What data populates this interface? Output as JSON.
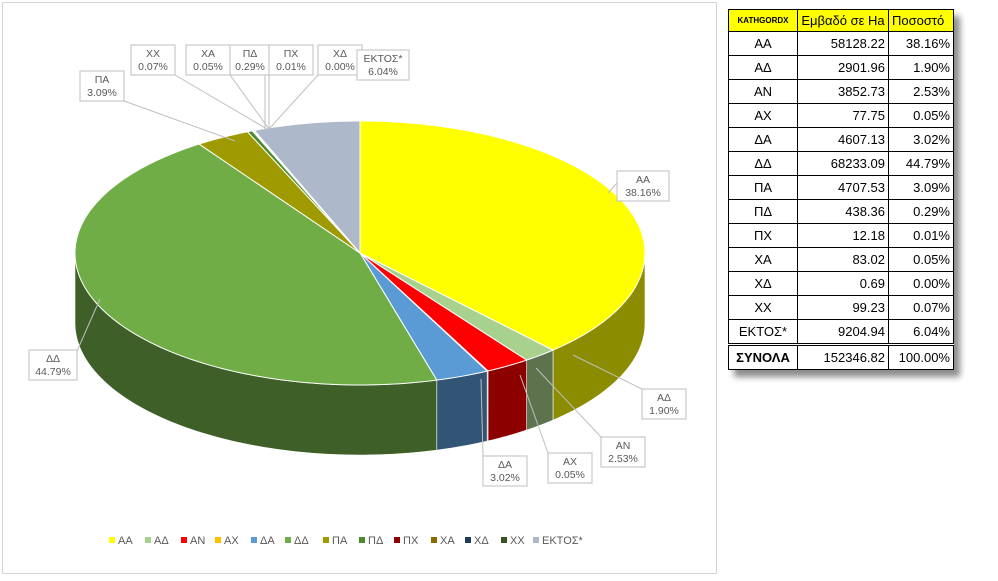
{
  "chart_data": {
    "type": "pie",
    "title": "",
    "categories": [
      "ΑΑ",
      "ΑΔ",
      "ΑΝ",
      "ΑΧ",
      "ΔΑ",
      "ΔΔ",
      "ΠΑ",
      "ΠΔ",
      "ΠΧ",
      "ΧΑ",
      "ΧΔ",
      "ΧΧ",
      "ΕΚΤΟΣ*"
    ],
    "values": [
      38.16,
      1.9,
      2.53,
      0.05,
      3.02,
      44.79,
      3.09,
      0.29,
      0.01,
      0.05,
      0.0,
      0.07,
      6.04
    ],
    "data_labels": [
      "38.16%",
      "1.90%",
      "2.53%",
      "0.05%",
      "3.02%",
      "44.79%",
      "3.09%",
      "0.29%",
      "0.01%",
      "0.05%",
      "0.00%",
      "0.07%",
      "6.04%"
    ],
    "colors": [
      "#ffff00",
      "#a9d18e",
      "#ff0000",
      "#ffc000",
      "#5b9bd5",
      "#70ad47",
      "#9e9a00",
      "#4e8b2e",
      "#8b0000",
      "#8b6b00",
      "#1f3a5a",
      "#375623",
      "#adb9ca"
    ],
    "legend_position": "bottom",
    "style": "3d"
  },
  "table": {
    "headers": [
      "KATHGORDX",
      "Εμβαδό σε Ha",
      "Ποσοστό"
    ],
    "rows": [
      [
        "ΑΑ",
        "58128.22",
        "38.16%"
      ],
      [
        "ΑΔ",
        "2901.96",
        "1.90%"
      ],
      [
        "ΑΝ",
        "3852.73",
        "2.53%"
      ],
      [
        "ΑΧ",
        "77.75",
        "0.05%"
      ],
      [
        "ΔΑ",
        "4607.13",
        "3.02%"
      ],
      [
        "ΔΔ",
        "68233.09",
        "44.79%"
      ],
      [
        "ΠΑ",
        "4707.53",
        "3.09%"
      ],
      [
        "ΠΔ",
        "438.36",
        "0.29%"
      ],
      [
        "ΠΧ",
        "12.18",
        "0.01%"
      ],
      [
        "ΧΑ",
        "83.02",
        "0.05%"
      ],
      [
        "ΧΔ",
        "0.69",
        "0.00%"
      ],
      [
        "ΧΧ",
        "99.23",
        "0.07%"
      ],
      [
        "ΕΚΤΟΣ*",
        "9204.94",
        "6.04%"
      ]
    ],
    "total": [
      "ΣΥΝΟΛΑ",
      "152346.82",
      "100.00%"
    ]
  }
}
